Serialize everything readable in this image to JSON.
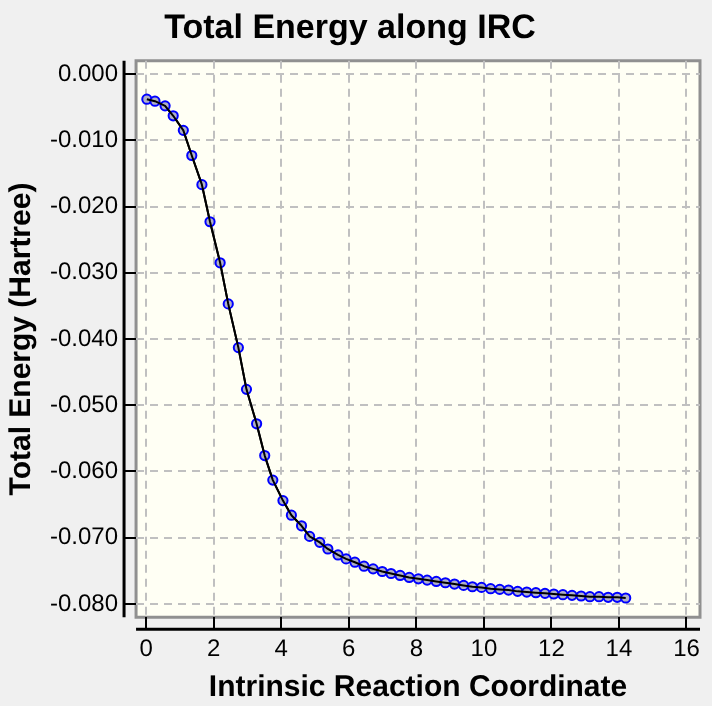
{
  "chart_data": {
    "type": "line",
    "title": "Total Energy along IRC",
    "xlabel": "Intrinsic Reaction Coordinate",
    "ylabel": "Total Energy (Hartree)",
    "x": [
      0.02,
      0.26,
      0.56,
      0.8,
      1.1,
      1.35,
      1.65,
      1.89,
      2.19,
      2.43,
      2.73,
      2.97,
      3.27,
      3.51,
      3.75,
      4.05,
      4.3,
      4.6,
      4.84,
      5.14,
      5.38,
      5.68,
      5.92,
      6.18,
      6.45,
      6.72,
      6.99,
      7.25,
      7.52,
      7.79,
      8.06,
      8.32,
      8.59,
      8.86,
      9.13,
      9.4,
      9.66,
      9.93,
      10.2,
      10.47,
      10.73,
      11.0,
      11.27,
      11.54,
      11.81,
      12.07,
      12.34,
      12.61,
      12.88,
      13.14,
      13.41,
      13.68,
      13.95,
      14.2
    ],
    "series": [
      {
        "color": "#0000ff",
        "values": [
          -0.0038,
          -0.0041,
          -0.0048,
          -0.0063,
          -0.0085,
          -0.0123,
          -0.0167,
          -0.0223,
          -0.0285,
          -0.0347,
          -0.0413,
          -0.0476,
          -0.0528,
          -0.0576,
          -0.0613,
          -0.0644,
          -0.0666,
          -0.0682,
          -0.0698,
          -0.0707,
          -0.0717,
          -0.0726,
          -0.0732,
          -0.0737,
          -0.0743,
          -0.0747,
          -0.0751,
          -0.0754,
          -0.0757,
          -0.076,
          -0.0762,
          -0.0764,
          -0.0766,
          -0.0768,
          -0.077,
          -0.0772,
          -0.0774,
          -0.0775,
          -0.0777,
          -0.0778,
          -0.0779,
          -0.0781,
          -0.0782,
          -0.0783,
          -0.0784,
          -0.0785,
          -0.0786,
          -0.0787,
          -0.0788,
          -0.0789,
          -0.0789,
          -0.079,
          -0.079,
          -0.0791
        ]
      }
    ],
    "xlim": [
      -0.3,
      16.4
    ],
    "xticks": [
      0,
      2,
      4,
      6,
      8,
      10,
      12,
      14,
      16
    ],
    "ylim": [
      -0.082,
      0.002
    ],
    "yticks": [
      {
        "value": 0,
        "label": "0.000"
      },
      {
        "value": -0.01,
        "label": "-0.010"
      },
      {
        "value": -0.02,
        "label": "-0.020"
      },
      {
        "value": -0.03,
        "label": "-0.030"
      },
      {
        "value": -0.04,
        "label": "-0.040"
      },
      {
        "value": -0.05,
        "label": "-0.050"
      },
      {
        "value": -0.06,
        "label": "-0.060"
      },
      {
        "value": -0.07,
        "label": "-0.070"
      },
      {
        "value": -0.08,
        "label": "-0.080"
      }
    ],
    "grid": true,
    "legend": false,
    "marker": "circle",
    "line_style": "solid"
  }
}
